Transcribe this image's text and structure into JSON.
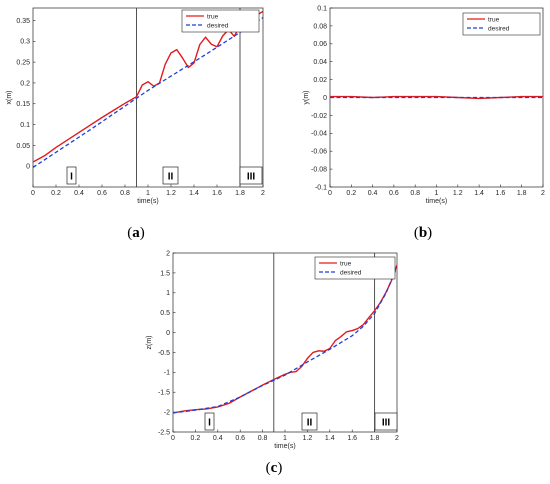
{
  "chart_data": [
    {
      "id": "a",
      "type": "line",
      "caption_letter": "a",
      "xlabel": "time(s)",
      "ylabel": "x(m)",
      "xlim": [
        0,
        2
      ],
      "ylim": [
        -0.05,
        0.38
      ],
      "xticks": [
        "0",
        "0.2",
        "0.4",
        "0.6",
        "0.8",
        "1",
        "1.2",
        "1.4",
        "1.6",
        "1.8",
        "2"
      ],
      "yticks": [
        "0",
        "0.05",
        "0.1",
        "0.15",
        "0.2",
        "0.25",
        "0.3",
        "0.35"
      ],
      "ytick_values": [
        0,
        0.05,
        0.1,
        0.15,
        0.2,
        0.25,
        0.3,
        0.35
      ],
      "legend": [
        "true",
        "desired"
      ],
      "legend_position": "top-right",
      "series": [
        {
          "name": "true",
          "color": "#e31a1c",
          "style": "solid",
          "x": [
            0,
            0.1,
            0.2,
            0.3,
            0.4,
            0.5,
            0.6,
            0.7,
            0.8,
            0.9,
            0.95,
            1.0,
            1.05,
            1.1,
            1.15,
            1.2,
            1.25,
            1.3,
            1.35,
            1.4,
            1.45,
            1.5,
            1.55,
            1.6,
            1.65,
            1.7,
            1.75,
            1.8,
            1.9,
            2.0
          ],
          "y": [
            0.01,
            0.025,
            0.045,
            0.063,
            0.081,
            0.099,
            0.117,
            0.134,
            0.151,
            0.167,
            0.195,
            0.203,
            0.192,
            0.2,
            0.245,
            0.272,
            0.28,
            0.26,
            0.237,
            0.248,
            0.292,
            0.31,
            0.293,
            0.287,
            0.313,
            0.328,
            0.312,
            0.338,
            0.355,
            0.372
          ]
        },
        {
          "name": "desired",
          "color": "#1f3fd6",
          "style": "dashed",
          "x": [
            0,
            0.5,
            1.0,
            1.5,
            2.0
          ],
          "y": [
            -0.003,
            0.088,
            0.182,
            0.268,
            0.357
          ]
        }
      ],
      "regions": {
        "bounds": [
          0.9,
          1.8
        ],
        "labels": [
          {
            "text": "I",
            "x": 0.35
          },
          {
            "text": "II",
            "x": 1.25
          },
          {
            "text": "III",
            "x": 1.9
          }
        ]
      }
    },
    {
      "id": "b",
      "type": "line",
      "caption_letter": "b",
      "xlabel": "time(s)",
      "ylabel": "y(m)",
      "xlim": [
        0,
        2
      ],
      "ylim": [
        -0.1,
        0.1
      ],
      "xticks": [
        "0",
        "0.2",
        "0.4",
        "0.6",
        "0.8",
        "1",
        "1.2",
        "1.4",
        "1.6",
        "1.8",
        "2"
      ],
      "yticks": [
        "-0.1",
        "-0.08",
        "-0.06",
        "-0.04",
        "-0.02",
        "0",
        "0.02",
        "0.04",
        "0.06",
        "0.08",
        "0.1"
      ],
      "ytick_values": [
        -0.1,
        -0.08,
        -0.06,
        -0.04,
        -0.02,
        0,
        0.02,
        0.04,
        0.06,
        0.08,
        0.1
      ],
      "legend": [
        "true",
        "desired"
      ],
      "legend_position": "top-right",
      "series": [
        {
          "name": "true",
          "color": "#e31a1c",
          "style": "solid",
          "x": [
            0,
            0.2,
            0.4,
            0.6,
            0.8,
            1.0,
            1.2,
            1.4,
            1.6,
            1.8,
            2.0
          ],
          "y": [
            0.001,
            0.001,
            0.0,
            0.001,
            0.001,
            0.001,
            0.0,
            -0.001,
            0.0,
            0.001,
            0.001
          ]
        },
        {
          "name": "desired",
          "color": "#1f3fd6",
          "style": "dashed",
          "x": [
            0,
            2.0
          ],
          "y": [
            0,
            0
          ]
        }
      ]
    },
    {
      "id": "c",
      "type": "line",
      "caption_letter": "c",
      "xlabel": "time(s)",
      "ylabel": "z(m)",
      "xlim": [
        0,
        2
      ],
      "ylim": [
        -2.5,
        2
      ],
      "xticks": [
        "0",
        "0.2",
        "0.4",
        "0.6",
        "0.8",
        "1",
        "1.2",
        "1.4",
        "1.6",
        "1.8",
        "2"
      ],
      "yticks": [
        "-2.5",
        "-2",
        "-1.5",
        "-1",
        "-0.5",
        "0",
        "0.5",
        "1",
        "1.5",
        "2"
      ],
      "ytick_values": [
        -2.5,
        -2,
        -1.5,
        -1,
        -0.5,
        0,
        0.5,
        1,
        1.5,
        2
      ],
      "legend": [
        "true",
        "desired"
      ],
      "legend_position": "top-right",
      "series": [
        {
          "name": "true",
          "color": "#e31a1c",
          "style": "solid",
          "x": [
            0,
            0.1,
            0.2,
            0.3,
            0.4,
            0.5,
            0.6,
            0.7,
            0.8,
            0.9,
            1.0,
            1.05,
            1.1,
            1.15,
            1.2,
            1.25,
            1.3,
            1.35,
            1.4,
            1.45,
            1.5,
            1.55,
            1.6,
            1.65,
            1.7,
            1.75,
            1.8,
            1.85,
            1.9,
            1.95,
            2.0
          ],
          "y": [
            -2.02,
            -1.97,
            -1.94,
            -1.92,
            -1.87,
            -1.78,
            -1.62,
            -1.47,
            -1.32,
            -1.18,
            -1.05,
            -1.0,
            -0.98,
            -0.85,
            -0.65,
            -0.5,
            -0.46,
            -0.47,
            -0.4,
            -0.2,
            -0.1,
            0.02,
            0.05,
            0.1,
            0.2,
            0.38,
            0.55,
            0.75,
            1.0,
            1.3,
            1.7
          ]
        },
        {
          "name": "desired",
          "color": "#1f3fd6",
          "style": "dashed",
          "x": [
            0,
            0.2,
            0.4,
            0.6,
            0.8,
            1.0,
            1.2,
            1.4,
            1.6,
            1.7,
            1.8,
            1.9,
            2.0
          ],
          "y": [
            -2.02,
            -1.95,
            -1.86,
            -1.62,
            -1.33,
            -1.07,
            -0.74,
            -0.42,
            -0.08,
            0.16,
            0.48,
            0.98,
            1.65
          ]
        }
      ],
      "regions": {
        "bounds": [
          0.9,
          1.8
        ],
        "labels": [
          {
            "text": "I",
            "x": 0.35
          },
          {
            "text": "II",
            "x": 1.25
          },
          {
            "text": "III",
            "x": 1.9
          }
        ]
      }
    }
  ]
}
